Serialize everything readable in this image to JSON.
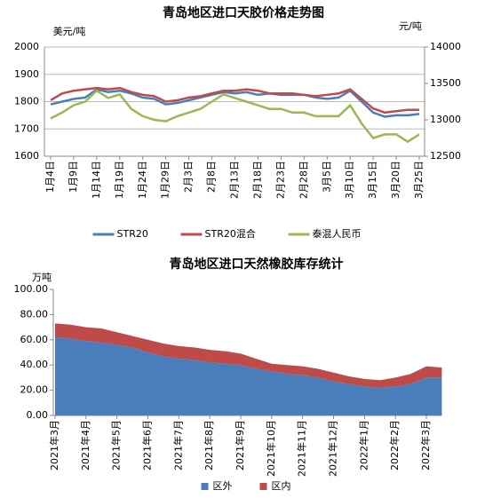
{
  "chart_data": [
    {
      "type": "line",
      "title": "青岛地区进口天胶价格走势图",
      "y_label": "美元/吨",
      "y2_label": "元/吨",
      "categories": [
        "1月4日",
        null,
        "1月9日",
        null,
        "1月14日",
        null,
        "1月19日",
        null,
        "1月24日",
        null,
        "1月29日",
        null,
        "2月3日",
        null,
        "2月8日",
        null,
        "2月13日",
        null,
        "2月18日",
        null,
        "2月23日",
        null,
        "2月28日",
        null,
        "3月5日",
        null,
        "3月10日",
        null,
        "3月15日",
        null,
        "3月20日",
        null,
        "3月25日"
      ],
      "series": [
        {
          "name": "STR20",
          "color": "#4a7ebb",
          "values": [
            1790,
            1800,
            1810,
            1815,
            1845,
            1835,
            1840,
            1830,
            1815,
            1810,
            1790,
            1795,
            1805,
            1815,
            1825,
            1835,
            1830,
            1835,
            1825,
            1830,
            1825,
            1825,
            1825,
            1815,
            1810,
            1815,
            1840,
            1800,
            1760,
            1745,
            1750,
            1750,
            1755
          ]
        },
        {
          "name": "STR20混合",
          "color": "#be4b48",
          "values": [
            1805,
            1830,
            1840,
            1845,
            1850,
            1845,
            1850,
            1835,
            1825,
            1820,
            1800,
            1805,
            1815,
            1820,
            1830,
            1840,
            1840,
            1845,
            1840,
            1830,
            1830,
            1830,
            1825,
            1820,
            1825,
            1830,
            1845,
            1810,
            1775,
            1760,
            1765,
            1770,
            1770
          ]
        },
        {
          "name": "泰混人民币",
          "color": "#98b954",
          "axis": "y2",
          "values": [
            13020,
            13100,
            13200,
            13250,
            13400,
            13300,
            13350,
            13150,
            13050,
            13000,
            12980,
            13050,
            13100,
            13150,
            13250,
            13350,
            13300,
            13250,
            13200,
            13150,
            13150,
            13100,
            13100,
            13050,
            13050,
            13050,
            13200,
            12950,
            12750,
            12800,
            12800,
            12700,
            12800
          ]
        }
      ],
      "ylim": [
        1600,
        2000
      ],
      "yticks": [
        1600,
        1700,
        1800,
        1900,
        2000
      ],
      "y2lim": [
        12500,
        14000
      ],
      "y2ticks": [
        12500,
        13000,
        13500,
        14000
      ],
      "grid": true,
      "legend": "bottom"
    },
    {
      "type": "area",
      "stacked": true,
      "title": "青岛地区进口天然橡胶库存统计",
      "y_label": "万吨",
      "categories": [
        "2021年3月",
        null,
        "2021年4月",
        null,
        "2021年5月",
        null,
        "2021年6月",
        null,
        "2021年7月",
        null,
        "2021年8月",
        null,
        "2021年9月",
        null,
        "2021年10月",
        null,
        "2021年11月",
        null,
        "2021年12月",
        null,
        "2022年1月",
        null,
        "2022年2月",
        null,
        "2022年3月",
        null
      ],
      "series": [
        {
          "name": "区外",
          "color": "#4a7ebb",
          "values": [
            62,
            61,
            59,
            58,
            56,
            54,
            50,
            47,
            45,
            44,
            42,
            41,
            40,
            37,
            35,
            33,
            32,
            30,
            27,
            25,
            23,
            22,
            23,
            25,
            30,
            30
          ]
        },
        {
          "name": "区内",
          "color": "#be4b48",
          "values": [
            11,
            11,
            11,
            11,
            10,
            9,
            10,
            10,
            10,
            10,
            10,
            10,
            9,
            8,
            6,
            7,
            7,
            7,
            7,
            6,
            6,
            6,
            7,
            8,
            9,
            8
          ]
        }
      ],
      "ylim": [
        0,
        100
      ],
      "yticks": [
        {
          "value": 0,
          "label": "0.00"
        },
        {
          "value": 20,
          "label": "20.00"
        },
        {
          "value": 40,
          "label": "40.00"
        },
        {
          "value": 60,
          "label": "60.00"
        },
        {
          "value": 80,
          "label": "80.00"
        },
        {
          "value": 100,
          "label": "100.00"
        }
      ],
      "grid": false,
      "legend": "bottom"
    }
  ]
}
